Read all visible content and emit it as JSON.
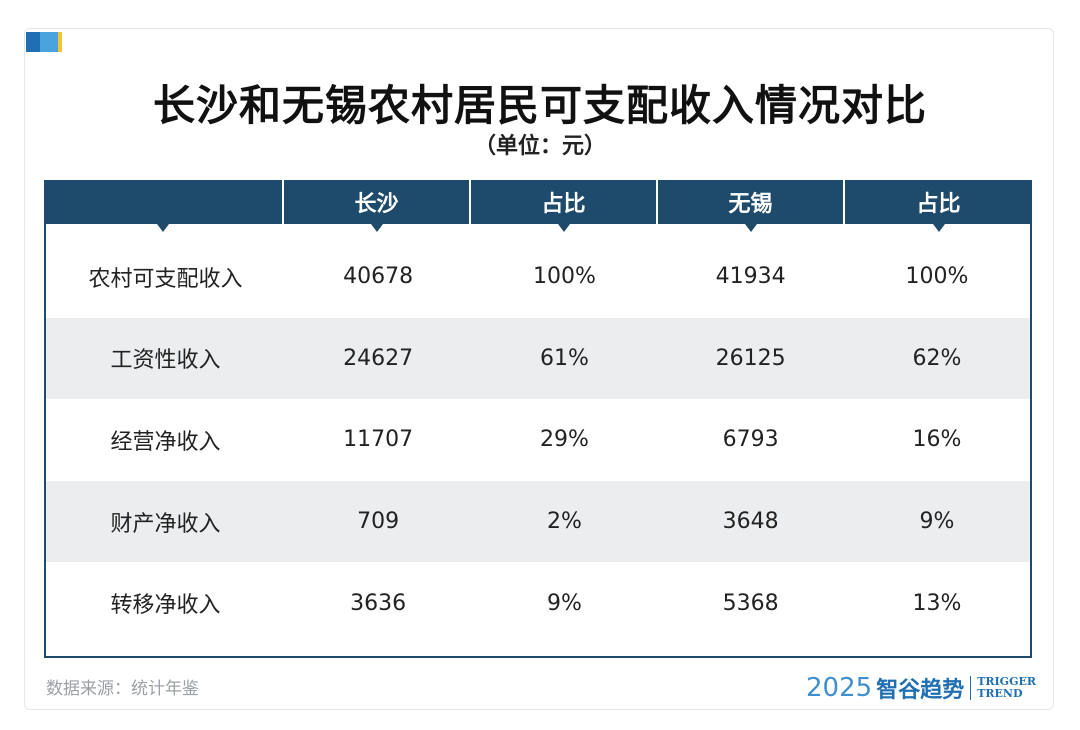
{
  "title": "长沙和无锡农村居民可支配收入情况对比",
  "subtitle": "（单位：元）",
  "chart_data": {
    "type": "table",
    "columns": [
      "",
      "长沙",
      "占比",
      "无锡",
      "占比"
    ],
    "rows": [
      [
        "农村可支配收入",
        "40678",
        "100%",
        "41934",
        "100%"
      ],
      [
        "工资性收入",
        "24627",
        "61%",
        "26125",
        "62%"
      ],
      [
        "经营净收入",
        "11707",
        "29%",
        "6793",
        "16%"
      ],
      [
        "财产净收入",
        "709",
        "2%",
        "3648",
        "9%"
      ],
      [
        "转移净收入",
        "3636",
        "9%",
        "5368",
        "13%"
      ]
    ]
  },
  "footer": {
    "source": "数据来源：统计年鉴",
    "brand_year": "2025",
    "brand_cn": "智谷趋势",
    "brand_en_1": "TRIGGER",
    "brand_en_2": "TREND"
  },
  "colors": {
    "header_bg": "#1e4b6c",
    "alt_row": "#ebedef",
    "brand": "#1f6fb2"
  }
}
